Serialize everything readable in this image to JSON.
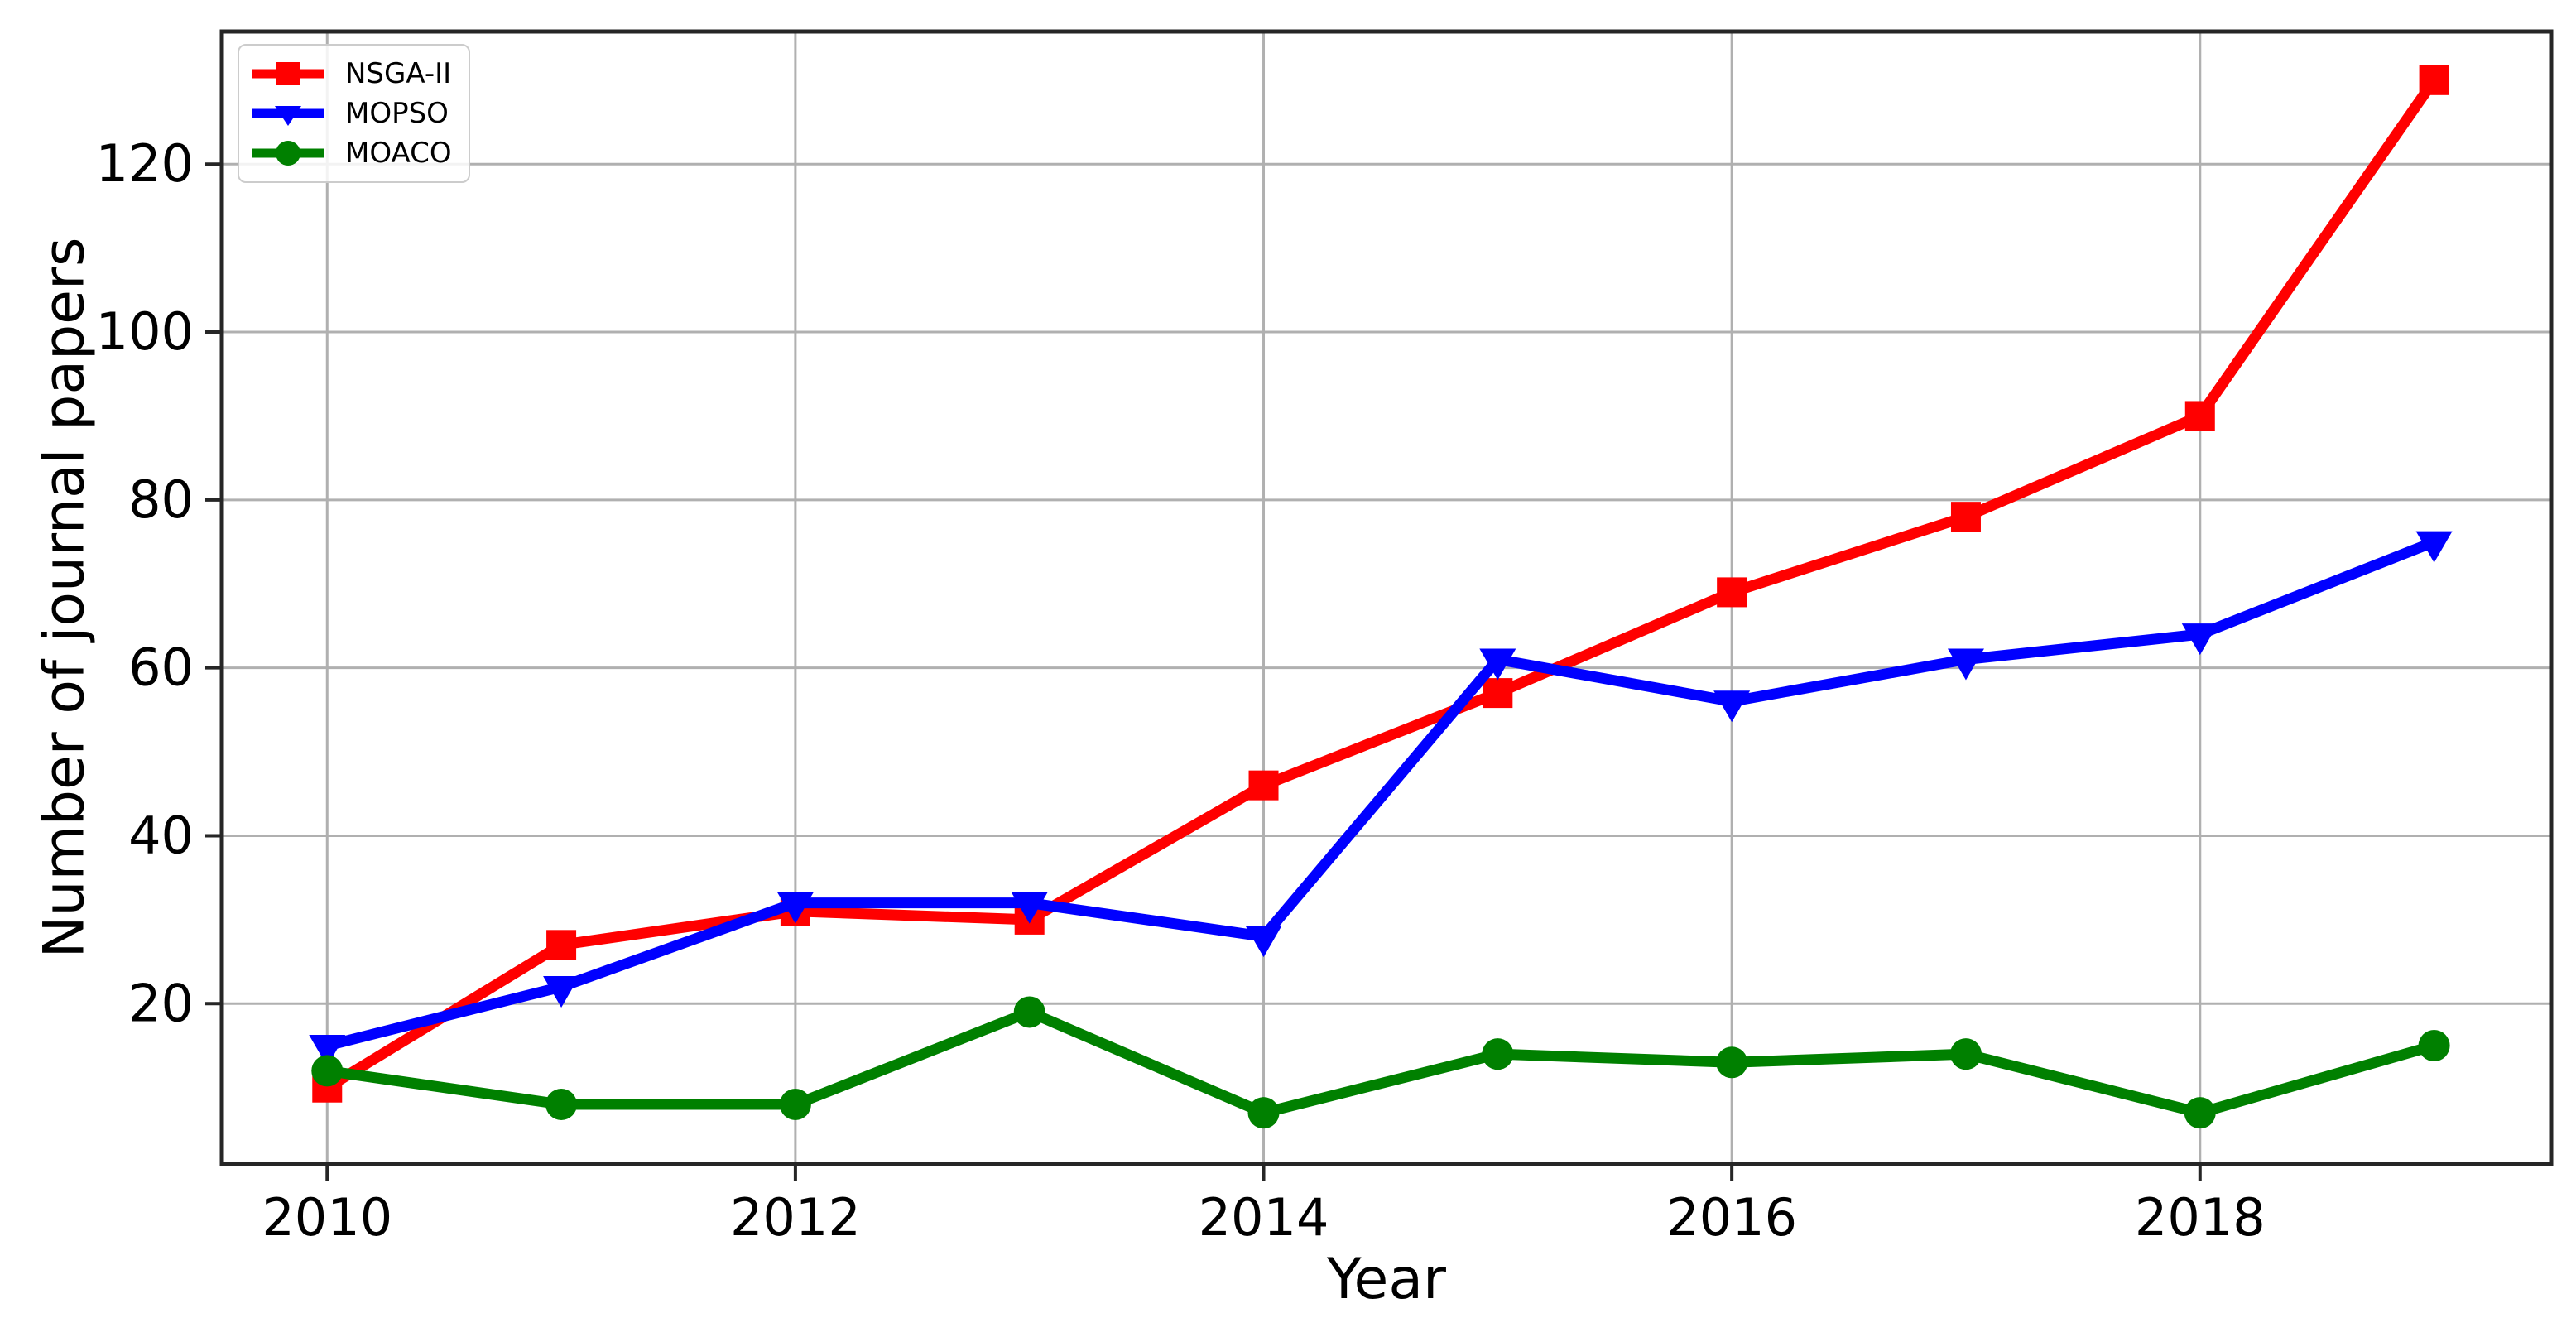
{
  "figure": {
    "background": "#ffffff",
    "spine_color": "#262626",
    "grid_color": "#b0b0b0",
    "tick_color": "#262626",
    "text_color": "#000000"
  },
  "legend": {
    "position": "upper left",
    "items": [
      {
        "label": "NSGA-II",
        "color": "#ff0000",
        "marker": "square"
      },
      {
        "label": "MOPSO",
        "color": "#0000ff",
        "marker": "triangle-down"
      },
      {
        "label": "MOACO",
        "color": "#008000",
        "marker": "circle"
      }
    ]
  },
  "chart_data": {
    "type": "line",
    "title": "",
    "xlabel": "Year",
    "ylabel": "Number of journal papers",
    "x": [
      2010,
      2011,
      2012,
      2013,
      2014,
      2015,
      2016,
      2017,
      2018,
      2019
    ],
    "series": [
      {
        "name": "NSGA-II",
        "color": "#ff0000",
        "marker": "square",
        "values": [
          10,
          27,
          31,
          30,
          46,
          57,
          69,
          78,
          90,
          130
        ]
      },
      {
        "name": "MOPSO",
        "color": "#0000ff",
        "marker": "triangle-down",
        "values": [
          15,
          22,
          32,
          32,
          28,
          61,
          56,
          61,
          64,
          75
        ]
      },
      {
        "name": "MOACO",
        "color": "#008000",
        "marker": "circle",
        "values": [
          12,
          8,
          8,
          19,
          7,
          14,
          13,
          14,
          7,
          15
        ]
      }
    ],
    "x_ticks": [
      2010,
      2012,
      2014,
      2016,
      2018
    ],
    "y_ticks": [
      20,
      40,
      60,
      80,
      100,
      120
    ],
    "xlim": [
      2009.55,
      2019.5
    ],
    "ylim": [
      0.9,
      135.8
    ],
    "grid": true,
    "legend_position": "upper left"
  }
}
